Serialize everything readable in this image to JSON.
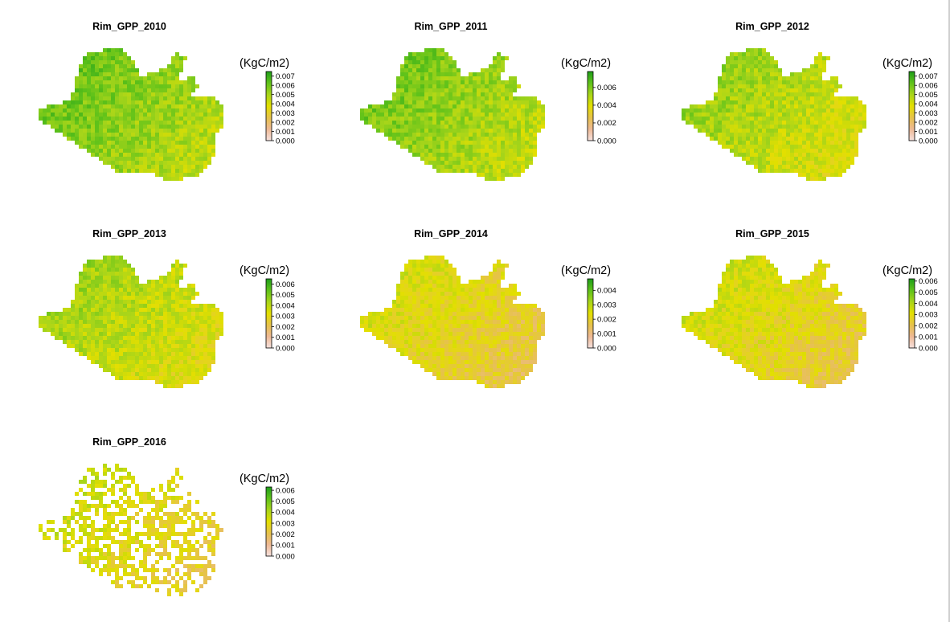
{
  "colors": {
    "ramp": [
      "#f6e1de",
      "#eeb994",
      "#e6c24a",
      "#e3df00",
      "#a8d51a",
      "#5fc21a",
      "#1e9e1a"
    ],
    "border": "#000000",
    "background": "#ffffff"
  },
  "panels": [
    {
      "title": "Rim_GPP_2010",
      "unit": "(KgC/m2)",
      "legend_max": 0.0075,
      "ticks": [
        "0.000",
        "0.001",
        "0.002",
        "0.003",
        "0.004",
        "0.005",
        "0.006",
        "0.007"
      ],
      "tick_values": [
        0,
        0.001,
        0.002,
        0.003,
        0.004,
        0.005,
        0.006,
        0.007
      ],
      "mean_level": 0.72,
      "gaps": false
    },
    {
      "title": "Rim_GPP_2011",
      "unit": "(KgC/m2)",
      "legend_max": 0.0078,
      "ticks": [
        "0.000",
        "0.002",
        "0.004",
        "0.006"
      ],
      "tick_values": [
        0,
        0.002,
        0.004,
        0.006
      ],
      "mean_level": 0.7,
      "gaps": false
    },
    {
      "title": "Rim_GPP_2012",
      "unit": "(KgC/m2)",
      "legend_max": 0.0075,
      "ticks": [
        "0.000",
        "0.001",
        "0.002",
        "0.003",
        "0.004",
        "0.005",
        "0.006",
        "0.007"
      ],
      "tick_values": [
        0,
        0.001,
        0.002,
        0.003,
        0.004,
        0.005,
        0.006,
        0.007
      ],
      "mean_level": 0.62,
      "gaps": false
    },
    {
      "title": "Rim_GPP_2013",
      "unit": "(KgC/m2)",
      "legend_max": 0.0065,
      "ticks": [
        "0.000",
        "0.001",
        "0.002",
        "0.003",
        "0.004",
        "0.005",
        "0.006"
      ],
      "tick_values": [
        0,
        0.001,
        0.002,
        0.003,
        0.004,
        0.005,
        0.006
      ],
      "mean_level": 0.6,
      "gaps": false
    },
    {
      "title": "Rim_GPP_2014",
      "unit": "(KgC/m2)",
      "legend_max": 0.0048,
      "ticks": [
        "0.000",
        "0.001",
        "0.002",
        "0.003",
        "0.004"
      ],
      "tick_values": [
        0,
        0.001,
        0.002,
        0.003,
        0.004
      ],
      "mean_level": 0.45,
      "gaps": false
    },
    {
      "title": "Rim_GPP_2015",
      "unit": "(KgC/m2)",
      "legend_max": 0.0062,
      "ticks": [
        "0.000",
        "0.001",
        "0.002",
        "0.003",
        "0.004",
        "0.005",
        "0.006"
      ],
      "tick_values": [
        0,
        0.001,
        0.002,
        0.003,
        0.004,
        0.005,
        0.006
      ],
      "mean_level": 0.47,
      "gaps": false
    },
    {
      "title": "Rim_GPP_2016",
      "unit": "(KgC/m2)",
      "legend_max": 0.0063,
      "ticks": [
        "0.000",
        "0.001",
        "0.002",
        "0.003",
        "0.004",
        "0.005",
        "0.006"
      ],
      "tick_values": [
        0,
        0.001,
        0.002,
        0.003,
        0.004,
        0.005,
        0.006
      ],
      "mean_level": 0.48,
      "gaps": true
    }
  ]
}
